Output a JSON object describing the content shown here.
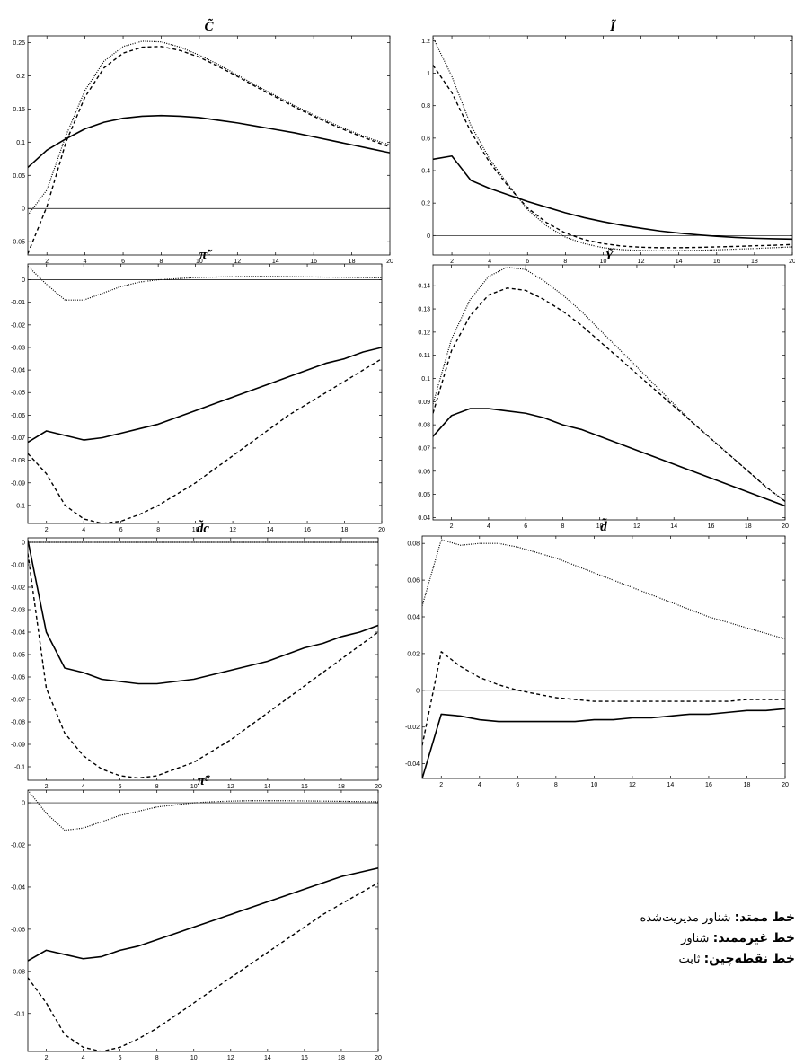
{
  "legend": {
    "solid": {
      "label": "خط ممتد:",
      "value": "شناور مدیریت‌شده"
    },
    "dashed": {
      "label": "خط غیرممتد:",
      "value": "شناور"
    },
    "dotted": {
      "label": "خط نقطه‌چین:",
      "value": "ثابت"
    }
  },
  "chart_data": [
    {
      "type": "line",
      "title": "C̃",
      "x": [
        1,
        2,
        3,
        4,
        5,
        6,
        7,
        8,
        9,
        10,
        11,
        12,
        13,
        14,
        15,
        16,
        17,
        18,
        19,
        20
      ],
      "xticks": [
        2,
        4,
        6,
        8,
        10,
        12,
        14,
        16,
        18,
        20
      ],
      "ylim": [
        -0.07,
        0.26
      ],
      "yticks": [
        -0.05,
        0,
        0.05,
        0.1,
        0.15,
        0.2,
        0.25
      ],
      "ytick_labels": [
        "-0.05",
        "0",
        "0.05",
        "0.1",
        "0.15",
        "0.2",
        "0.25"
      ],
      "zero_line": true,
      "series": [
        {
          "style": "solid",
          "values": [
            0.062,
            0.088,
            0.105,
            0.12,
            0.13,
            0.136,
            0.139,
            0.14,
            0.139,
            0.137,
            0.133,
            0.129,
            0.124,
            0.119,
            0.114,
            0.108,
            0.102,
            0.096,
            0.09,
            0.084
          ]
        },
        {
          "style": "dashed",
          "values": [
            -0.068,
            0.003,
            0.1,
            0.168,
            0.212,
            0.234,
            0.243,
            0.244,
            0.238,
            0.228,
            0.214,
            0.199,
            0.183,
            0.168,
            0.153,
            0.139,
            0.126,
            0.114,
            0.103,
            0.093
          ]
        },
        {
          "style": "dotted",
          "values": [
            -0.01,
            0.028,
            0.11,
            0.178,
            0.222,
            0.244,
            0.252,
            0.251,
            0.243,
            0.231,
            0.217,
            0.201,
            0.185,
            0.17,
            0.155,
            0.141,
            0.128,
            0.116,
            0.105,
            0.096
          ]
        }
      ]
    },
    {
      "type": "line",
      "title": "Ĩ",
      "x": [
        1,
        2,
        3,
        4,
        5,
        6,
        7,
        8,
        9,
        10,
        11,
        12,
        13,
        14,
        15,
        16,
        17,
        18,
        19,
        20
      ],
      "xticks": [
        2,
        4,
        6,
        8,
        10,
        12,
        14,
        16,
        18,
        20
      ],
      "ylim": [
        -0.12,
        1.23
      ],
      "yticks": [
        0,
        0.2,
        0.4,
        0.6,
        0.8,
        1,
        1.2
      ],
      "ytick_labels": [
        "0",
        "0.2",
        "0.4",
        "0.6",
        "0.8",
        "1",
        "1.2"
      ],
      "zero_line": true,
      "series": [
        {
          "style": "solid",
          "values": [
            0.47,
            0.49,
            0.34,
            0.29,
            0.25,
            0.21,
            0.175,
            0.14,
            0.11,
            0.085,
            0.063,
            0.045,
            0.028,
            0.015,
            0.004,
            -0.005,
            -0.012,
            -0.017,
            -0.02,
            -0.022
          ]
        },
        {
          "style": "dashed",
          "values": [
            1.05,
            0.88,
            0.64,
            0.45,
            0.3,
            0.17,
            0.08,
            0.015,
            -0.025,
            -0.05,
            -0.065,
            -0.072,
            -0.075,
            -0.075,
            -0.073,
            -0.07,
            -0.067,
            -0.063,
            -0.06,
            -0.055
          ]
        },
        {
          "style": "dotted",
          "values": [
            1.22,
            0.98,
            0.68,
            0.47,
            0.31,
            0.16,
            0.06,
            -0.01,
            -0.05,
            -0.075,
            -0.087,
            -0.092,
            -0.094,
            -0.093,
            -0.091,
            -0.088,
            -0.084,
            -0.08,
            -0.075,
            -0.07
          ]
        }
      ]
    },
    {
      "type": "line",
      "title": "π̃ᶜ",
      "x": [
        1,
        2,
        3,
        4,
        5,
        6,
        7,
        8,
        9,
        10,
        11,
        12,
        13,
        14,
        15,
        16,
        17,
        18,
        19,
        20
      ],
      "xticks": [
        2,
        4,
        6,
        8,
        10,
        12,
        14,
        16,
        18,
        20
      ],
      "ylim": [
        -0.108,
        0.007
      ],
      "yticks": [
        0,
        -0.01,
        -0.02,
        -0.03,
        -0.04,
        -0.05,
        -0.06,
        -0.07,
        -0.08,
        -0.09,
        -0.1
      ],
      "ytick_labels": [
        "0",
        "-0.01",
        "-0.02",
        "-0.03",
        "-0.04",
        "-0.05",
        "-0.06",
        "-0.07",
        "-0.08",
        "-0.09",
        "-0.1"
      ],
      "zero_line": true,
      "series": [
        {
          "style": "solid",
          "values": [
            -0.072,
            -0.067,
            -0.069,
            -0.071,
            -0.07,
            -0.068,
            -0.066,
            -0.064,
            -0.061,
            -0.058,
            -0.055,
            -0.052,
            -0.049,
            -0.046,
            -0.043,
            -0.04,
            -0.037,
            -0.035,
            -0.032,
            -0.03
          ]
        },
        {
          "style": "dashed",
          "values": [
            -0.077,
            -0.086,
            -0.1,
            -0.106,
            -0.108,
            -0.107,
            -0.104,
            -0.1,
            -0.095,
            -0.09,
            -0.084,
            -0.078,
            -0.072,
            -0.066,
            -0.06,
            -0.055,
            -0.05,
            -0.045,
            -0.04,
            -0.035
          ]
        },
        {
          "style": "dotted",
          "values": [
            0.006,
            -0.002,
            -0.009,
            -0.009,
            -0.006,
            -0.003,
            -0.001,
            0,
            0.0005,
            0.001,
            0.0012,
            0.0014,
            0.0015,
            0.0015,
            0.0014,
            0.0013,
            0.0012,
            0.0011,
            0.001,
            0.0009
          ]
        }
      ]
    },
    {
      "type": "line",
      "title": "Ỹ",
      "x": [
        1,
        2,
        3,
        4,
        5,
        6,
        7,
        8,
        9,
        10,
        11,
        12,
        13,
        14,
        15,
        16,
        17,
        18,
        19,
        20
      ],
      "xticks": [
        2,
        4,
        6,
        8,
        10,
        12,
        14,
        16,
        18,
        20
      ],
      "ylim": [
        0.039,
        0.149
      ],
      "yticks": [
        0.04,
        0.05,
        0.06,
        0.07,
        0.08,
        0.09,
        0.1,
        0.11,
        0.12,
        0.13,
        0.14
      ],
      "ytick_labels": [
        "0.04",
        "0.05",
        "0.06",
        "0.07",
        "0.08",
        "0.09",
        "0.1",
        "0.11",
        "0.12",
        "0.13",
        "0.14"
      ],
      "zero_line": false,
      "series": [
        {
          "style": "solid",
          "values": [
            0.075,
            0.084,
            0.087,
            0.087,
            0.086,
            0.085,
            0.083,
            0.08,
            0.078,
            0.075,
            0.072,
            0.069,
            0.066,
            0.063,
            0.06,
            0.057,
            0.054,
            0.051,
            0.048,
            0.045
          ]
        },
        {
          "style": "dashed",
          "values": [
            0.085,
            0.112,
            0.127,
            0.136,
            0.139,
            0.138,
            0.134,
            0.129,
            0.123,
            0.116,
            0.109,
            0.102,
            0.095,
            0.088,
            0.081,
            0.074,
            0.067,
            0.06,
            0.053,
            0.047
          ]
        },
        {
          "style": "dotted",
          "values": [
            0.089,
            0.117,
            0.134,
            0.144,
            0.148,
            0.147,
            0.142,
            0.136,
            0.129,
            0.121,
            0.113,
            0.105,
            0.097,
            0.089,
            0.081,
            0.074,
            0.067,
            0.06,
            0.053,
            0.047
          ]
        }
      ]
    },
    {
      "type": "line",
      "title": "d̃c",
      "x": [
        1,
        2,
        3,
        4,
        5,
        6,
        7,
        8,
        9,
        10,
        11,
        12,
        13,
        14,
        15,
        16,
        17,
        18,
        19,
        20
      ],
      "xticks": [
        2,
        4,
        6,
        8,
        10,
        12,
        14,
        16,
        18,
        20
      ],
      "ylim": [
        -0.106,
        0.002
      ],
      "yticks": [
        0,
        -0.01,
        -0.02,
        -0.03,
        -0.04,
        -0.05,
        -0.06,
        -0.07,
        -0.08,
        -0.09,
        -0.1
      ],
      "ytick_labels": [
        "0",
        "-0.01",
        "-0.02",
        "-0.03",
        "-0.04",
        "-0.05",
        "-0.06",
        "-0.07",
        "-0.08",
        "-0.09",
        "-0.1"
      ],
      "zero_line": true,
      "series": [
        {
          "style": "solid",
          "values": [
            0.001,
            -0.04,
            -0.056,
            -0.058,
            -0.061,
            -0.062,
            -0.063,
            -0.063,
            -0.062,
            -0.061,
            -0.059,
            -0.057,
            -0.055,
            -0.053,
            -0.05,
            -0.047,
            -0.045,
            -0.042,
            -0.04,
            -0.037
          ]
        },
        {
          "style": "dashed",
          "values": [
            -0.005,
            -0.065,
            -0.085,
            -0.095,
            -0.101,
            -0.104,
            -0.105,
            -0.104,
            -0.101,
            -0.098,
            -0.093,
            -0.088,
            -0.082,
            -0.076,
            -0.07,
            -0.064,
            -0.058,
            -0.052,
            -0.046,
            -0.04
          ]
        },
        {
          "style": "dotted",
          "values": [
            0,
            0,
            0,
            0,
            0,
            0,
            0,
            0,
            0,
            0,
            0,
            0,
            0,
            0,
            0,
            0,
            0,
            0,
            0,
            0
          ]
        }
      ]
    },
    {
      "type": "line",
      "title": "d̃",
      "x": [
        1,
        2,
        3,
        4,
        5,
        6,
        7,
        8,
        9,
        10,
        11,
        12,
        13,
        14,
        15,
        16,
        17,
        18,
        19,
        20
      ],
      "xticks": [
        2,
        4,
        6,
        8,
        10,
        12,
        14,
        16,
        18,
        20
      ],
      "ylim": [
        -0.048,
        0.084
      ],
      "yticks": [
        -0.04,
        -0.02,
        0,
        0.02,
        0.04,
        0.06,
        0.08
      ],
      "ytick_labels": [
        "-0.04",
        "-0.02",
        "0",
        "0.02",
        "0.04",
        "0.06",
        "0.08"
      ],
      "zero_line": true,
      "series": [
        {
          "style": "solid",
          "values": [
            -0.048,
            -0.013,
            -0.014,
            -0.016,
            -0.017,
            -0.017,
            -0.017,
            -0.017,
            -0.017,
            -0.016,
            -0.016,
            -0.015,
            -0.015,
            -0.014,
            -0.013,
            -0.013,
            -0.012,
            -0.011,
            -0.011,
            -0.01
          ]
        },
        {
          "style": "dashed",
          "values": [
            -0.03,
            0.021,
            0.013,
            0.007,
            0.003,
            0,
            -0.002,
            -0.004,
            -0.005,
            -0.006,
            -0.006,
            -0.006,
            -0.006,
            -0.006,
            -0.006,
            -0.006,
            -0.006,
            -0.005,
            -0.005,
            -0.005
          ]
        },
        {
          "style": "dotted",
          "values": [
            0.046,
            0.082,
            0.079,
            0.08,
            0.08,
            0.078,
            0.075,
            0.072,
            0.068,
            0.064,
            0.06,
            0.056,
            0.052,
            0.048,
            0.044,
            0.04,
            0.037,
            0.034,
            0.031,
            0.028
          ]
        }
      ]
    },
    {
      "type": "line",
      "title": "π̃ᵈ",
      "x": [
        1,
        2,
        3,
        4,
        5,
        6,
        7,
        8,
        9,
        10,
        11,
        12,
        13,
        14,
        15,
        16,
        17,
        18,
        19,
        20
      ],
      "xticks": [
        2,
        4,
        6,
        8,
        10,
        12,
        14,
        16,
        18,
        20
      ],
      "ylim": [
        -0.118,
        0.006
      ],
      "yticks": [
        0,
        -0.02,
        -0.04,
        -0.06,
        -0.08,
        -0.1
      ],
      "ytick_labels": [
        "0",
        "-0.02",
        "-0.04",
        "-0.06",
        "-0.08",
        "-0.1"
      ],
      "zero_line": true,
      "series": [
        {
          "style": "solid",
          "values": [
            -0.075,
            -0.07,
            -0.072,
            -0.074,
            -0.073,
            -0.07,
            -0.068,
            -0.065,
            -0.062,
            -0.059,
            -0.056,
            -0.053,
            -0.05,
            -0.047,
            -0.044,
            -0.041,
            -0.038,
            -0.035,
            -0.033,
            -0.031
          ]
        },
        {
          "style": "dashed",
          "values": [
            -0.083,
            -0.095,
            -0.11,
            -0.116,
            -0.118,
            -0.116,
            -0.112,
            -0.107,
            -0.101,
            -0.095,
            -0.089,
            -0.083,
            -0.077,
            -0.071,
            -0.065,
            -0.059,
            -0.053,
            -0.048,
            -0.043,
            -0.038
          ]
        },
        {
          "style": "dotted",
          "values": [
            0.006,
            -0.005,
            -0.013,
            -0.012,
            -0.009,
            -0.006,
            -0.004,
            -0.002,
            -0.001,
            0,
            0.0005,
            0.0008,
            0.001,
            0.001,
            0.001,
            0.0009,
            0.0008,
            0.0007,
            0.0006,
            0.0005
          ]
        }
      ]
    }
  ]
}
